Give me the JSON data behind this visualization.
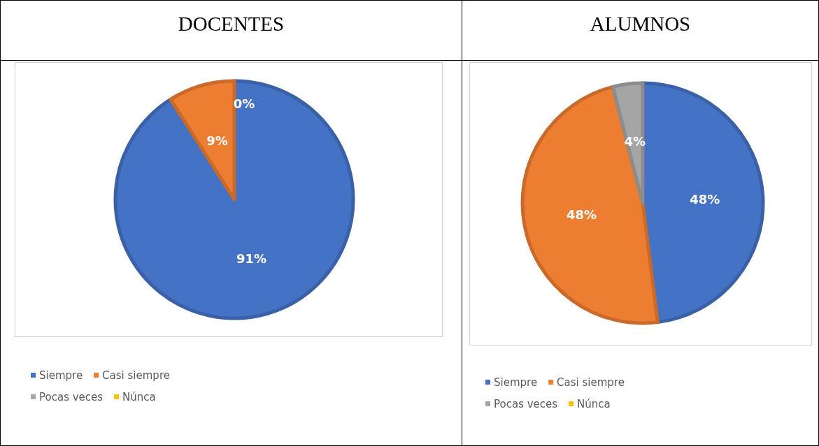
{
  "chart_data": [
    {
      "type": "pie",
      "title": "DOCENTES",
      "categories": [
        "Siempre",
        "Casi siempre",
        "Pocas veces",
        "Núnca"
      ],
      "values": [
        91,
        9,
        0,
        0
      ],
      "colors": [
        "#4472c4",
        "#ed7d31",
        "#a5a5a5",
        "#ffc000"
      ],
      "value_labels": [
        "91%",
        "9%",
        "0%",
        null
      ],
      "legend": "bottom left"
    },
    {
      "type": "pie",
      "title": "ALUMNOS",
      "categories": [
        "Siempre",
        "Casi siempre",
        "Pocas veces",
        "Núnca"
      ],
      "values": [
        48,
        48,
        4,
        0
      ],
      "colors": [
        "#4472c4",
        "#ed7d31",
        "#a5a5a5",
        "#ffc000"
      ],
      "value_labels": [
        "48%",
        "48%",
        "4%",
        null
      ],
      "legend": "bottom left"
    }
  ]
}
